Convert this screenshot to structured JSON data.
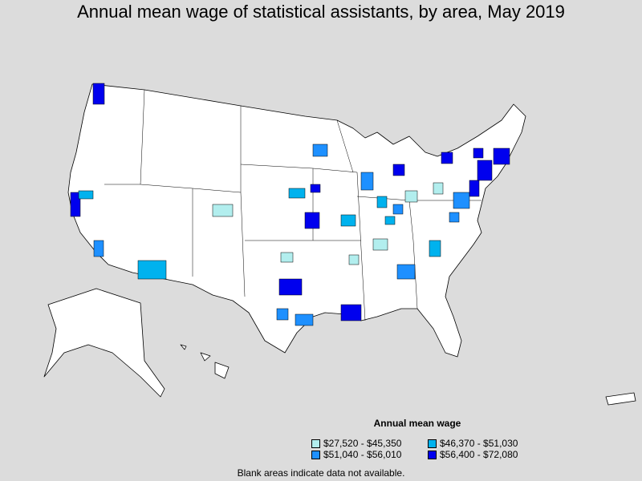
{
  "title": "Annual mean wage of statistical assistants, by area, May 2019",
  "legend": {
    "title": "Annual mean wage",
    "items": [
      {
        "label": "$27,520 - $45,350",
        "color": "#b2eeee"
      },
      {
        "label": "$46,370 - $51,030",
        "color": "#00b2ee"
      },
      {
        "label": "$51,040 - $56,010",
        "color": "#1e90ff"
      },
      {
        "label": "$56,400 - $72,080",
        "color": "#0000ee"
      }
    ]
  },
  "footnote": "Blank areas indicate data not available."
}
